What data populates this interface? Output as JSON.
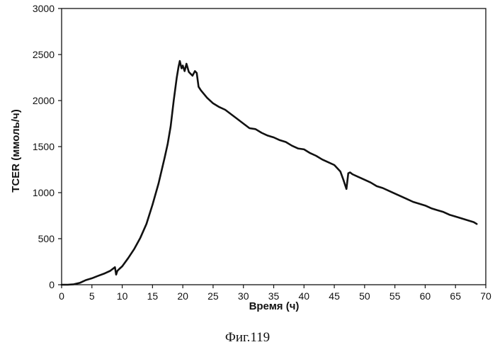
{
  "chart_data": {
    "type": "line",
    "title": "",
    "xlabel": "Время (ч)",
    "ylabel": "TCER (ммоль/ч)",
    "xlim": [
      0,
      70
    ],
    "ylim": [
      0,
      3000
    ],
    "xticks": [
      0,
      5,
      10,
      15,
      20,
      25,
      30,
      35,
      40,
      45,
      50,
      55,
      60,
      65,
      70
    ],
    "yticks": [
      0,
      500,
      1000,
      1500,
      2000,
      2500,
      3000
    ],
    "x_tick_labels": [
      "0",
      "5",
      "10",
      "15",
      "20",
      "25",
      "30",
      "35",
      "40",
      "45",
      "50",
      "55",
      "60",
      "65",
      "70"
    ],
    "y_tick_labels": [
      "0",
      "500",
      "1000",
      "1500",
      "2000",
      "2500",
      "3000"
    ],
    "grid": false,
    "legend": "none",
    "line_color": "#111111",
    "series": [
      {
        "x": [
          0,
          1,
          2,
          3,
          3.5,
          4,
          5,
          6,
          7,
          7.5,
          8,
          8.5,
          8.8,
          9.0,
          9.2,
          9.5,
          10,
          11,
          12,
          13,
          14,
          15,
          16,
          17,
          17.5,
          18,
          18.5,
          19,
          19.3,
          19.5,
          19.8,
          20.0,
          20.3,
          20.6,
          21.0,
          21.3,
          21.6,
          22.0,
          22.3,
          22.6,
          23.0,
          24,
          25,
          26,
          27,
          28,
          29,
          30,
          31,
          32,
          33,
          34,
          35,
          36,
          37,
          38,
          39,
          40,
          41,
          42,
          43,
          44,
          45,
          46,
          46.5,
          47.0,
          47.3,
          47.6,
          48,
          49,
          50,
          51,
          52,
          53,
          54,
          55,
          56,
          57,
          58,
          59,
          60,
          61,
          62,
          63,
          64,
          65,
          66,
          67,
          68,
          68.5
        ],
        "values": [
          0,
          0,
          5,
          20,
          35,
          50,
          70,
          95,
          120,
          135,
          150,
          175,
          190,
          110,
          150,
          170,
          200,
          290,
          390,
          510,
          660,
          870,
          1100,
          1380,
          1530,
          1720,
          2000,
          2250,
          2370,
          2430,
          2350,
          2380,
          2320,
          2400,
          2310,
          2290,
          2270,
          2320,
          2300,
          2150,
          2110,
          2030,
          1970,
          1930,
          1900,
          1850,
          1800,
          1750,
          1700,
          1690,
          1650,
          1620,
          1600,
          1570,
          1550,
          1510,
          1480,
          1470,
          1430,
          1400,
          1360,
          1330,
          1300,
          1230,
          1140,
          1040,
          1210,
          1220,
          1200,
          1170,
          1140,
          1110,
          1070,
          1050,
          1020,
          990,
          960,
          930,
          900,
          880,
          860,
          830,
          810,
          790,
          760,
          740,
          720,
          700,
          680,
          660
        ]
      }
    ]
  },
  "caption": "Фиг.119"
}
